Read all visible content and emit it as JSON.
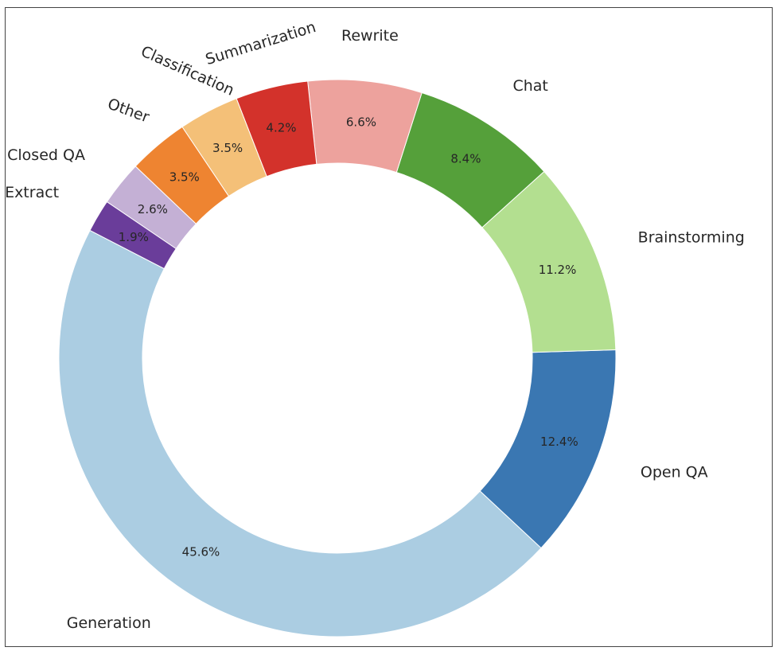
{
  "chart_data": {
    "type": "pie",
    "donut": true,
    "start_angle_deg": 152.7,
    "direction": "counterclockwise",
    "slices": [
      {
        "label": "Generation",
        "value": 45.6,
        "pct_text": "45.6%",
        "color": "#abcde2"
      },
      {
        "label": "Open QA",
        "value": 12.4,
        "pct_text": "12.4%",
        "color": "#3a77b2"
      },
      {
        "label": "Brainstorming",
        "value": 11.2,
        "pct_text": "11.2%",
        "color": "#b3df90"
      },
      {
        "label": "Chat",
        "value": 8.4,
        "pct_text": "8.4%",
        "color": "#55a03a"
      },
      {
        "label": "Rewrite",
        "value": 6.6,
        "pct_text": "6.6%",
        "color": "#eda29d"
      },
      {
        "label": "Summarization",
        "value": 4.2,
        "pct_text": "4.2%",
        "color": "#d3322b"
      },
      {
        "label": "Classification",
        "value": 3.5,
        "pct_text": "3.5%",
        "color": "#f4c078"
      },
      {
        "label": "Other",
        "value": 3.5,
        "pct_text": "3.5%",
        "color": "#ee8431"
      },
      {
        "label": "Closed QA",
        "value": 2.6,
        "pct_text": "2.6%",
        "color": "#c4b0d5"
      },
      {
        "label": "Extract",
        "value": 1.9,
        "pct_text": "1.9%",
        "color": "#6a3d9a"
      }
    ]
  }
}
